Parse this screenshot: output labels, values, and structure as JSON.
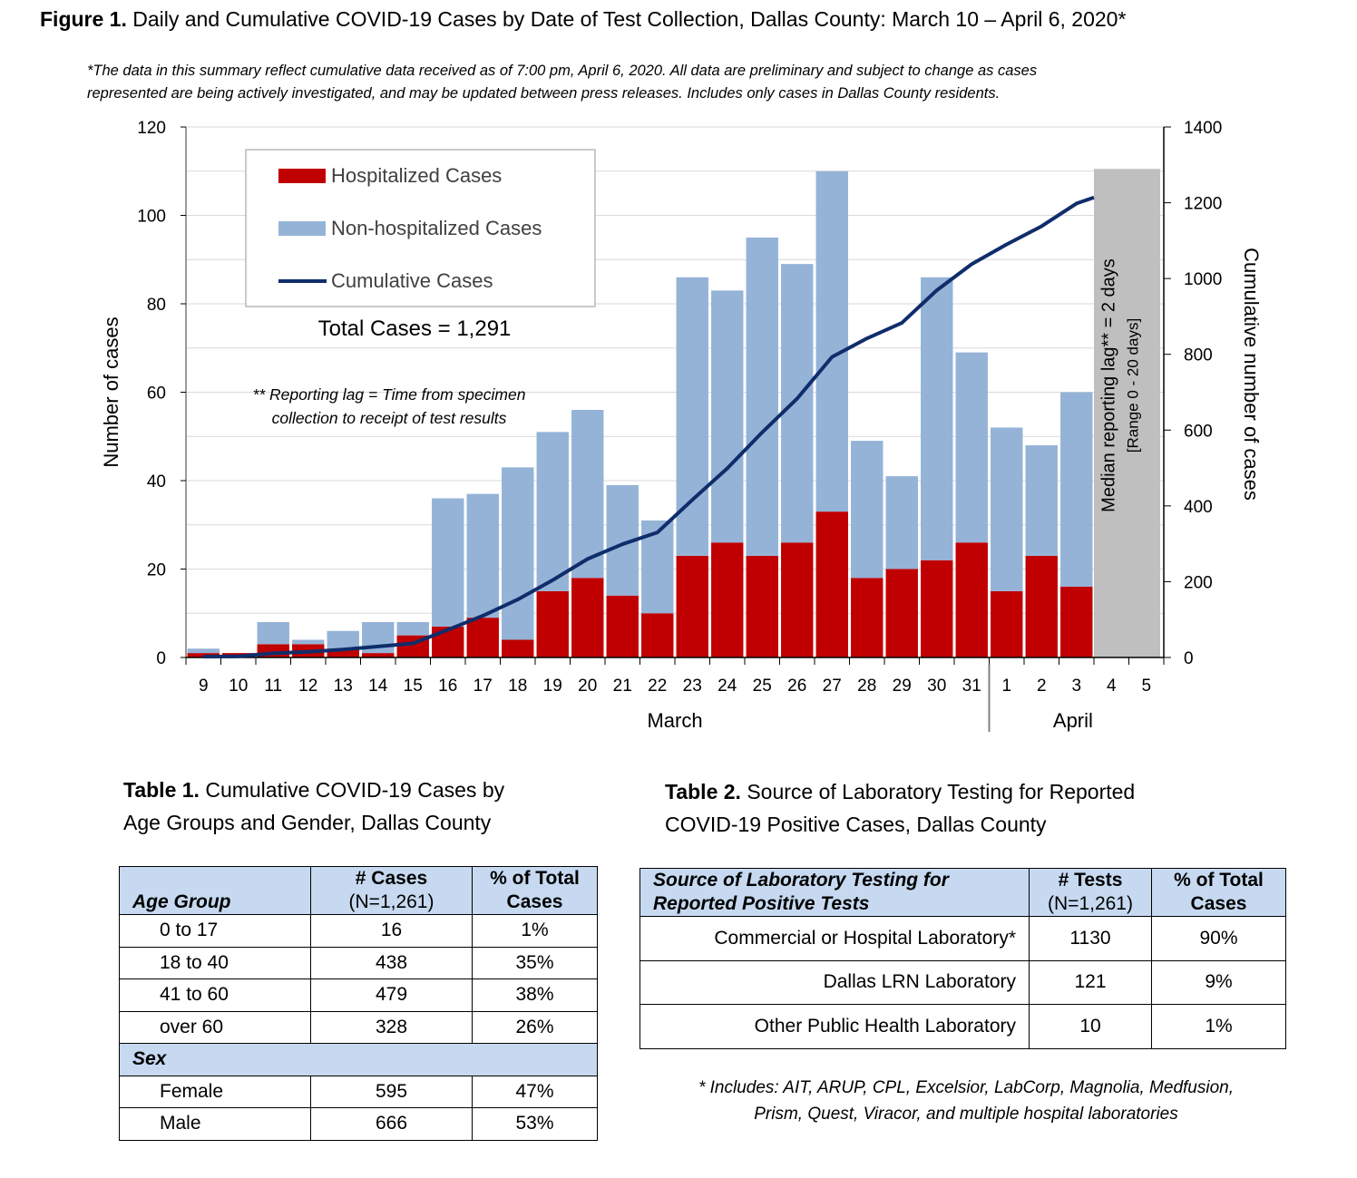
{
  "figure": {
    "title_bold": "Figure 1.",
    "title_rest": " Daily and Cumulative COVID-19 Cases by Date of Test Collection, Dallas County: March 10 – April 6, 2020*",
    "note_line1": "*The data in this summary reflect cumulative data received as of 7:00 pm, April 6, 2020.  All data are preliminary and subject to change as cases",
    "note_line2": "represented are being actively investigated, and may be updated between press releases. Includes only cases in Dallas County residents."
  },
  "chart_data": {
    "type": "bar",
    "stacked": true,
    "categories": [
      "9",
      "10",
      "11",
      "12",
      "13",
      "14",
      "15",
      "16",
      "17",
      "18",
      "19",
      "20",
      "21",
      "22",
      "23",
      "24",
      "25",
      "26",
      "27",
      "28",
      "29",
      "30",
      "31",
      "1",
      "2",
      "3",
      "4",
      "5"
    ],
    "series": [
      {
        "name": "Hospitalized Cases",
        "type": "bar",
        "axis": "left",
        "color": "#c00000",
        "values": [
          1,
          1,
          3,
          3,
          2,
          1,
          5,
          7,
          9,
          4,
          15,
          18,
          14,
          10,
          23,
          26,
          23,
          26,
          33,
          18,
          20,
          22,
          26,
          15,
          23,
          16,
          null,
          null
        ]
      },
      {
        "name": "Non-hospitalized Cases",
        "type": "bar",
        "axis": "left",
        "color": "#95b3d7",
        "values": [
          1,
          0,
          5,
          1,
          4,
          7,
          3,
          29,
          28,
          39,
          36,
          38,
          25,
          21,
          63,
          57,
          72,
          63,
          77,
          31,
          21,
          64,
          43,
          37,
          25,
          44,
          null,
          null
        ]
      },
      {
        "name": "Cumulative Cases",
        "type": "line",
        "axis": "right",
        "color": "#0f2d6b",
        "values": [
          2,
          3,
          11,
          15,
          21,
          29,
          37,
          73,
          110,
          153,
          204,
          260,
          299,
          330,
          416,
          499,
          594,
          683,
          793,
          842,
          883,
          969,
          1038,
          1090,
          1138,
          1198,
          1214,
          null
        ]
      }
    ],
    "y_left": {
      "label": "Number of cases",
      "min": 0,
      "max": 120,
      "ticks": [
        0,
        20,
        40,
        60,
        80,
        100,
        120
      ]
    },
    "y_right": {
      "label": "Cumulative number of cases",
      "min": 0,
      "max": 1400,
      "ticks": [
        0,
        200,
        400,
        600,
        800,
        1000,
        1200,
        1400
      ]
    },
    "x_groups": [
      "March",
      "April"
    ],
    "grid": true,
    "legend_position": "top-left",
    "annotations": {
      "total": "Total Cases = 1,291",
      "lag_note_1": "** Reporting lag = Time from specimen",
      "lag_note_2": "collection to receipt of test results",
      "shaded_1": "Median reporting lag**  = 2 days",
      "shaded_2": "[Range 0 - 20 days]"
    }
  },
  "table1": {
    "caption_bold": "Table 1.",
    "caption_rest": "  Cumulative COVID-19 Cases by",
    "caption_line2": "Age Groups and Gender, Dallas County",
    "col_group": "Age Group",
    "col_cases_1": "# Cases",
    "col_cases_2": "(N=1,261)",
    "col_pct_1": "% of Total",
    "col_pct_2": "Cases",
    "age_rows": [
      {
        "group": "0 to 17",
        "cases": "16",
        "pct": "1%"
      },
      {
        "group": "18 to 40",
        "cases": "438",
        "pct": "35%"
      },
      {
        "group": "41 to 60",
        "cases": "479",
        "pct": "38%"
      },
      {
        "group": "over 60",
        "cases": "328",
        "pct": "26%"
      }
    ],
    "sex_label": "Sex",
    "sex_rows": [
      {
        "group": "Female",
        "cases": "595",
        "pct": "47%"
      },
      {
        "group": "Male",
        "cases": "666",
        "pct": "53%"
      }
    ]
  },
  "table2": {
    "caption_bold": "Table 2.",
    "caption_rest": " Source of Laboratory Testing for Reported",
    "caption_line2": "COVID-19 Positive Cases, Dallas County",
    "col_src_1": "Source of Laboratory Testing for",
    "col_src_2": "Reported Positive Tests",
    "col_tests_1": "# Tests",
    "col_tests_2": "(N=1,261)",
    "col_pct_1": "% of Total",
    "col_pct_2": "Cases",
    "rows": [
      {
        "source": "Commercial or Hospital Laboratory*",
        "tests": "1130",
        "pct": "90%"
      },
      {
        "source": "Dallas LRN Laboratory",
        "tests": "121",
        "pct": "9%"
      },
      {
        "source": "Other Public Health Laboratory",
        "tests": "10",
        "pct": "1%"
      }
    ],
    "footnote_1": "* Includes: AIT, ARUP, CPL, Excelsior, LabCorp, Magnolia, Medfusion,",
    "footnote_2": "Prism, Quest, Viracor, and multiple hospital laboratories"
  }
}
